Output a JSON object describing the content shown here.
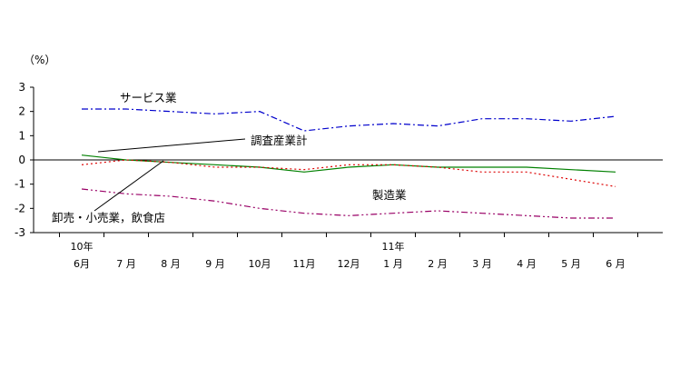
{
  "chart_data": {
    "type": "line",
    "unit_label": "（%）",
    "ylim": [
      -3,
      3
    ],
    "yticks": [
      "3",
      "2",
      "1",
      "0",
      "-1",
      "-2",
      "-3"
    ],
    "categories": [
      {
        "year": "10年",
        "month": "6月"
      },
      {
        "year": "",
        "month": "7 月"
      },
      {
        "year": "",
        "month": "8 月"
      },
      {
        "year": "",
        "month": "9 月"
      },
      {
        "year": "",
        "month": "10月"
      },
      {
        "year": "",
        "month": "11月"
      },
      {
        "year": "",
        "month": "12月"
      },
      {
        "year": "11年",
        "month": "1 月"
      },
      {
        "year": "",
        "month": "2 月"
      },
      {
        "year": "",
        "month": "3 月"
      },
      {
        "year": "",
        "month": "4 月"
      },
      {
        "year": "",
        "month": "5 月"
      },
      {
        "year": "",
        "month": "6 月"
      }
    ],
    "series": [
      {
        "name": "サービス業",
        "color": "#0000cc",
        "dash": "7,3,2,3",
        "values": [
          2.1,
          2.1,
          2.0,
          1.9,
          2.0,
          1.2,
          1.4,
          1.5,
          1.4,
          1.7,
          1.7,
          1.6,
          1.8
        ]
      },
      {
        "name": "調査産業計",
        "color": "#008000",
        "dash": "",
        "values": [
          0.2,
          0.0,
          -0.1,
          -0.2,
          -0.3,
          -0.5,
          -0.3,
          -0.2,
          -0.3,
          -0.3,
          -0.3,
          -0.4,
          -0.5
        ]
      },
      {
        "name": "製造業",
        "color": "#dd0000",
        "dash": "2,3",
        "values": [
          -0.2,
          0.0,
          -0.1,
          -0.3,
          -0.3,
          -0.4,
          -0.2,
          -0.2,
          -0.3,
          -0.5,
          -0.5,
          -0.8,
          -1.1
        ]
      },
      {
        "name": "卸売・小売業，飲食店",
        "color": "#990066",
        "dash": "7,3,2,3,2,3",
        "values": [
          -1.2,
          -1.4,
          -1.5,
          -1.7,
          -2.0,
          -2.2,
          -2.3,
          -2.2,
          -2.1,
          -2.2,
          -2.3,
          -2.4,
          -2.4
        ]
      }
    ],
    "annotations": {
      "service": "サービス業",
      "total": "調査産業計",
      "manufacturing": "製造業",
      "wholesale": "卸売・小売業，飲食店"
    },
    "grid": false
  }
}
